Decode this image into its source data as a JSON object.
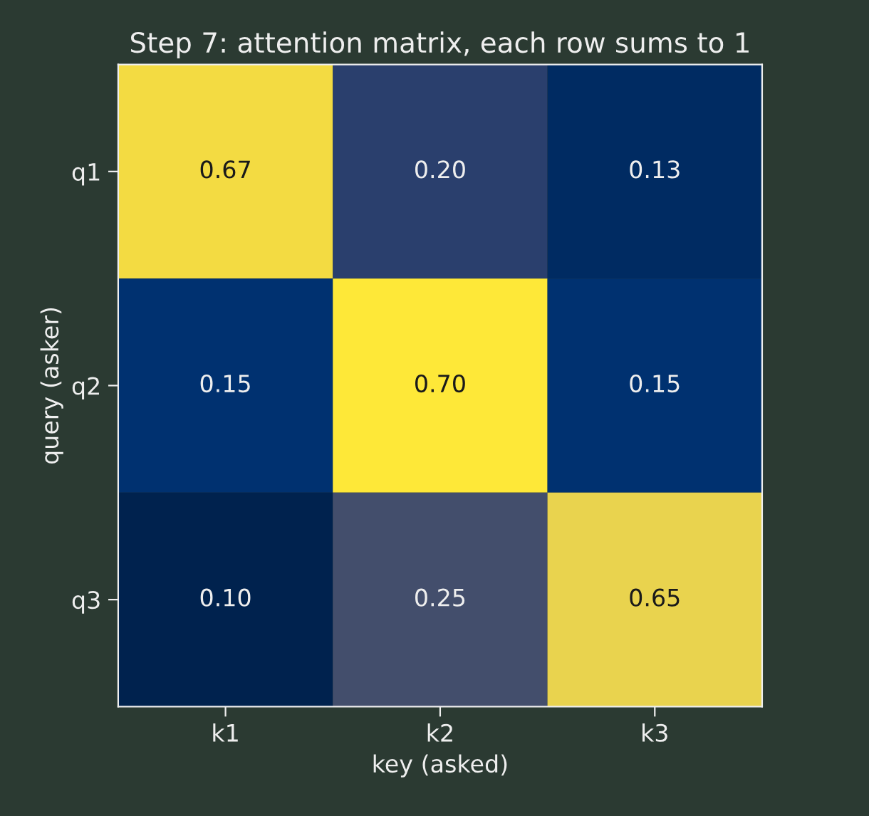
{
  "chart_data": {
    "type": "heatmap",
    "title": "Step 7: attention matrix, each row sums to 1",
    "xlabel": "key (asked)",
    "ylabel": "query (asker)",
    "categories": [
      "k1",
      "k2",
      "k3"
    ],
    "y_categories": [
      "q1",
      "q2",
      "q3"
    ],
    "cells": [
      [
        0.67,
        0.2,
        0.13
      ],
      [
        0.15,
        0.7,
        0.15
      ],
      [
        0.1,
        0.25,
        0.65
      ]
    ],
    "cell_labels": [
      [
        "0.67",
        "0.20",
        "0.13"
      ],
      [
        "0.15",
        "0.70",
        "0.15"
      ],
      [
        "0.10",
        "0.25",
        "0.65"
      ]
    ]
  }
}
